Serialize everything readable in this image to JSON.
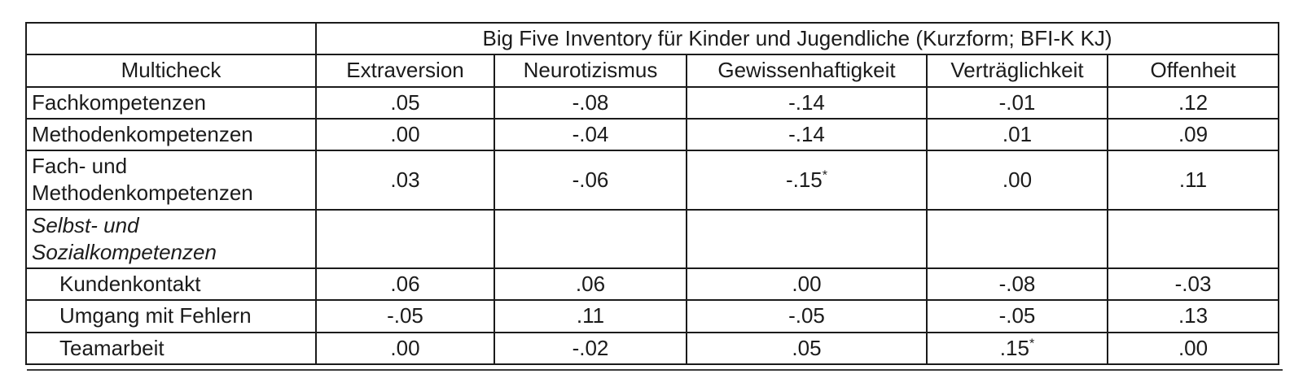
{
  "table": {
    "caption": "Big Five Inventory für Kinder und Jugendliche (Kurzform; BFI-K KJ)",
    "row_header": "Multicheck",
    "columns": [
      "Extraversion",
      "Neurotizismus",
      "Gewissenhaftigkeit",
      "Verträglichkeit",
      "Offenheit"
    ],
    "rows": [
      {
        "label": "Fachkompetenzen",
        "style": "normal",
        "values": [
          ".05",
          "-.08",
          "-.14",
          "-.01",
          ".12"
        ]
      },
      {
        "label": "Methodenkompetenzen",
        "style": "normal",
        "values": [
          ".00",
          "-.04",
          "-.14",
          ".01",
          ".09"
        ]
      },
      {
        "label": "Fach- und Methodenkompetenzen",
        "style": "normal",
        "values": [
          ".03",
          "-.06",
          "-.15*",
          ".00",
          ".11"
        ]
      },
      {
        "label": "Selbst- und Sozialkompetenzen",
        "style": "italic-group",
        "values": [
          "",
          "",
          "",
          "",
          ""
        ]
      },
      {
        "label": "Kundenkontakt",
        "style": "indented",
        "values": [
          ".06",
          ".06",
          ".00",
          "-.08",
          "-.03"
        ]
      },
      {
        "label": "Umgang mit Fehlern",
        "style": "indented",
        "values": [
          "-.05",
          ".11",
          "-.05",
          "-.05",
          ".13"
        ]
      },
      {
        "label": "Teamarbeit",
        "style": "indented",
        "values": [
          ".00",
          "-.02",
          ".05",
          ".15*",
          ".00"
        ]
      }
    ]
  }
}
